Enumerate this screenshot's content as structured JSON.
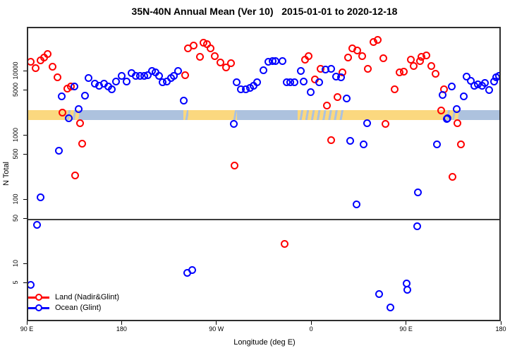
{
  "title": "35N-40N Annual Mean (Ver 10)   2015-01-01 to 2020-12-18",
  "colors": {
    "land": "#ff0000",
    "ocean": "#0000ff",
    "band_land": "#fbd87f",
    "band_ocean": "#adc2de",
    "reference_line": "#3d3d3d"
  },
  "legend": {
    "items": [
      {
        "label": "Land (Nadir&Glint)",
        "series": "land"
      },
      {
        "label": "Ocean (Glint)",
        "series": "ocean"
      }
    ]
  },
  "axes": {
    "x": {
      "label": "Longitude (deg E)",
      "ticks": [
        {
          "pos": 0,
          "label": "90 E"
        },
        {
          "pos": 90,
          "label": "180"
        },
        {
          "pos": 180,
          "label": "90 W"
        },
        {
          "pos": 270,
          "label": "0"
        },
        {
          "pos": 360,
          "label": "90 E"
        },
        {
          "pos": 450,
          "label": "180"
        }
      ],
      "note": "pos = degrees eastward along axis starting at 90E; axis spans 450 degrees (90E through 180, 90W, 0, 90E to 180)"
    },
    "y": {
      "label": "N Total",
      "scale": "log",
      "ticks": [
        {
          "value": 5,
          "label": "5"
        },
        {
          "value": 10,
          "label": "10"
        },
        {
          "value": 50,
          "label": "50"
        },
        {
          "value": 100,
          "label": "100"
        },
        {
          "value": 500,
          "label": "500"
        },
        {
          "value": 1000,
          "label": "1000"
        },
        {
          "value": 5000,
          "label": "5000"
        },
        {
          "value": 10000,
          "label": "10000"
        }
      ],
      "range": [
        1.25,
        48000
      ]
    }
  },
  "chart_data": {
    "type": "scatter",
    "title": "35N-40N Annual Mean (Ver 10)   2015-01-01 to 2020-12-18",
    "xlabel": "Longitude (deg E)",
    "ylabel": "N Total",
    "x_range_deg": [
      0,
      450
    ],
    "y_log_range": [
      1.25,
      48000
    ],
    "reference_line_y": 50,
    "surface_band": {
      "description": "land/ocean surface-type strip drawn across the plot at N ~1800-2550",
      "y_range_N": [
        1800,
        2550
      ],
      "segments": [
        {
          "from": 0,
          "to": 35,
          "type": "land"
        },
        {
          "from": 35,
          "to": 48,
          "type": "mix"
        },
        {
          "from": 48,
          "to": 147,
          "type": "ocean"
        },
        {
          "from": 147,
          "to": 152,
          "type": "mix"
        },
        {
          "from": 152,
          "to": 193,
          "type": "land"
        },
        {
          "from": 193,
          "to": 198,
          "type": "mix"
        },
        {
          "from": 198,
          "to": 256,
          "type": "ocean"
        },
        {
          "from": 256,
          "to": 301,
          "type": "mix"
        },
        {
          "from": 301,
          "to": 395,
          "type": "land"
        },
        {
          "from": 395,
          "to": 410,
          "type": "mix"
        },
        {
          "from": 410,
          "to": 450,
          "type": "ocean"
        }
      ]
    },
    "series": [
      {
        "name": "Land (Nadir&Glint)",
        "color": "#ff0000",
        "points": [
          [
            2.5,
            14600
          ],
          [
            6.7,
            11350
          ],
          [
            11.9,
            15250
          ],
          [
            15.4,
            17000
          ],
          [
            18.5,
            19150
          ],
          [
            23,
            12150
          ],
          [
            28.1,
            8230
          ],
          [
            37,
            5540
          ],
          [
            40.8,
            5880
          ],
          [
            32.6,
            2320
          ],
          [
            48.9,
            1600
          ],
          [
            51.1,
            760
          ],
          [
            44.4,
            243
          ],
          [
            149.3,
            9030
          ],
          [
            152,
            23050
          ],
          [
            156.7,
            25550
          ],
          [
            166.1,
            28800
          ],
          [
            169.9,
            27100
          ],
          [
            173.2,
            23600
          ],
          [
            163.2,
            17300
          ],
          [
            177.2,
            17750
          ],
          [
            182.6,
            14000
          ],
          [
            187.7,
            11650
          ],
          [
            192.8,
            13800
          ],
          [
            196,
            350
          ],
          [
            243.1,
            21
          ],
          [
            262.5,
            15650
          ],
          [
            266.3,
            17600
          ],
          [
            277.4,
            11150
          ],
          [
            272.5,
            7600
          ],
          [
            298.6,
            9770
          ],
          [
            293.9,
            4030
          ],
          [
            283.7,
            2970
          ],
          [
            287.7,
            863
          ],
          [
            303.8,
            16650
          ],
          [
            307.8,
            23250
          ],
          [
            312.7,
            21550
          ],
          [
            317.2,
            17450
          ],
          [
            322.7,
            11250
          ],
          [
            327.9,
            29000
          ],
          [
            331.6,
            31900
          ],
          [
            337.3,
            16300
          ],
          [
            352.9,
            10000
          ],
          [
            356.9,
            10150
          ],
          [
            363,
            15750
          ],
          [
            365.8,
            12450
          ],
          [
            371.9,
            14750
          ],
          [
            373.5,
            17150
          ],
          [
            377.9,
            18300
          ],
          [
            383,
            12250
          ],
          [
            386.4,
            9300
          ],
          [
            339.5,
            1560
          ],
          [
            348,
            5410
          ],
          [
            392.4,
            2490
          ],
          [
            394.9,
            5410
          ],
          [
            407.6,
            1600
          ],
          [
            411,
            755
          ],
          [
            403.1,
            236
          ]
        ]
      },
      {
        "name": "Ocean (Glint)",
        "color": "#0000ff",
        "points": [
          [
            43.7,
            5880
          ],
          [
            31.9,
            4230
          ],
          [
            57.1,
            7970
          ],
          [
            63.4,
            6670
          ],
          [
            67.6,
            6180
          ],
          [
            72.1,
            6670
          ],
          [
            76.1,
            5880
          ],
          [
            53.8,
            4300
          ],
          [
            48.2,
            2660
          ],
          [
            38.2,
            1930
          ],
          [
            29.3,
            590
          ],
          [
            11.4,
            111
          ],
          [
            8.7,
            41.5
          ],
          [
            2,
            4.9
          ],
          [
            79.5,
            5410
          ],
          [
            83.2,
            7030
          ],
          [
            88.4,
            8650
          ],
          [
            93.5,
            7030
          ],
          [
            98.4,
            9750
          ],
          [
            102.4,
            8650
          ],
          [
            106.2,
            8800
          ],
          [
            110,
            8800
          ],
          [
            113.6,
            9000
          ],
          [
            117.4,
            10450
          ],
          [
            121.2,
            9930
          ],
          [
            124.1,
            8650
          ],
          [
            127.9,
            6850
          ],
          [
            131.9,
            7090
          ],
          [
            135.9,
            7970
          ],
          [
            138.6,
            8800
          ],
          [
            142,
            10450
          ],
          [
            147.5,
            3560
          ],
          [
            151.3,
            7.5
          ],
          [
            155.7,
            8.3
          ],
          [
            197.8,
            6850
          ],
          [
            202.2,
            5410
          ],
          [
            206.7,
            5330
          ],
          [
            210.5,
            5680
          ],
          [
            213.8,
            6030
          ],
          [
            217.4,
            6960
          ],
          [
            223.4,
            10600
          ],
          [
            227.9,
            14600
          ],
          [
            231.7,
            14850
          ],
          [
            235,
            14850
          ],
          [
            241.3,
            14850
          ],
          [
            195.1,
            1560
          ],
          [
            245.3,
            6960
          ],
          [
            249.1,
            6850
          ],
          [
            252.9,
            6960
          ],
          [
            258.5,
            10350
          ],
          [
            261.4,
            7130
          ],
          [
            268.1,
            4880
          ],
          [
            276.4,
            6850
          ],
          [
            282.1,
            10900
          ],
          [
            287.5,
            11150
          ],
          [
            292.1,
            8450
          ],
          [
            297,
            8250
          ],
          [
            302.2,
            3840
          ],
          [
            306,
            845
          ],
          [
            311.6,
            88
          ],
          [
            318.7,
            750
          ],
          [
            321.6,
            1600
          ],
          [
            393.1,
            4370
          ],
          [
            398,
            1930
          ],
          [
            388.2,
            755
          ],
          [
            370.3,
            133
          ],
          [
            369,
            39.5
          ],
          [
            359,
            5.1
          ],
          [
            359.8,
            4.1
          ],
          [
            333.4,
            3.5
          ],
          [
            343.9,
            2.15
          ],
          [
            402,
            5880
          ],
          [
            413.2,
            4230
          ],
          [
            407.1,
            2640
          ],
          [
            397.6,
            1880
          ],
          [
            416.5,
            8450
          ],
          [
            419.9,
            7260
          ],
          [
            423.7,
            6180
          ],
          [
            427.2,
            6380
          ],
          [
            431,
            6180
          ],
          [
            433.9,
            6700
          ],
          [
            437.7,
            5200
          ],
          [
            442.1,
            7130
          ],
          [
            444.4,
            8250
          ],
          [
            447.3,
            8800
          ]
        ]
      }
    ]
  }
}
